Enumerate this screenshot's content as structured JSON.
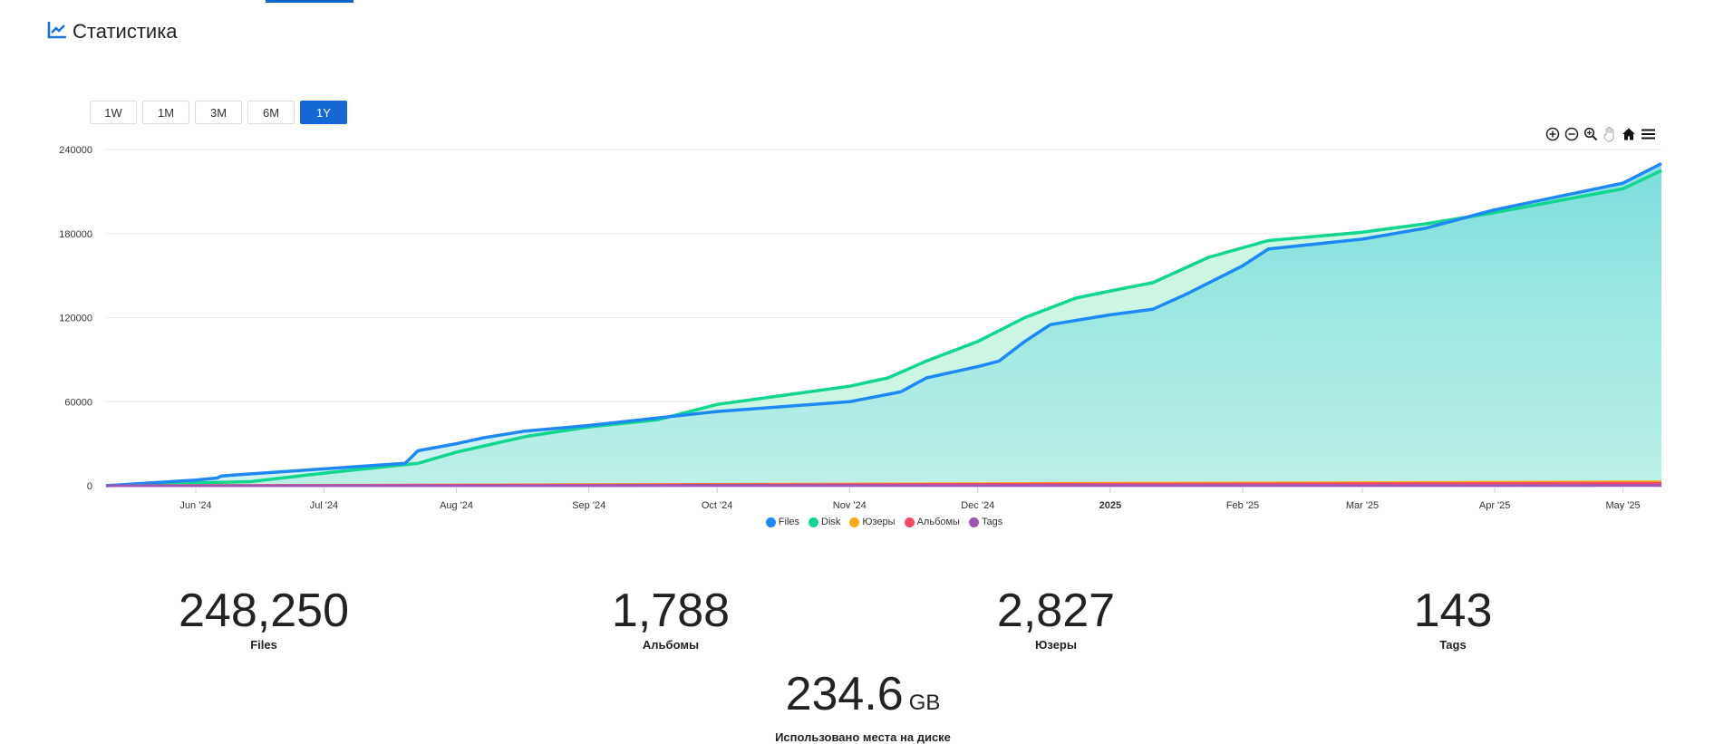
{
  "header": {
    "title": "Статистика",
    "icon": "chart-line-icon"
  },
  "ranges": [
    {
      "label": "1W",
      "active": false
    },
    {
      "label": "1M",
      "active": false
    },
    {
      "label": "3M",
      "active": false
    },
    {
      "label": "6M",
      "active": false
    },
    {
      "label": "1Y",
      "active": true
    }
  ],
  "toolbar": [
    "zoom-in-icon",
    "zoom-out-icon",
    "zoom-selection-icon",
    "pan-icon",
    "home-icon",
    "menu-icon"
  ],
  "chart_data": {
    "type": "area",
    "title": "",
    "xlabel": "",
    "ylabel": "",
    "xlim": [
      "2024-05-11",
      "2025-05-10"
    ],
    "ylim": [
      0,
      240000
    ],
    "yticks": [
      0,
      60000,
      120000,
      180000,
      240000
    ],
    "yticklabels": [
      "0",
      "60000",
      "120000",
      "180000",
      "240000"
    ],
    "xticks": [
      {
        "date": "2024-06-01",
        "label": "Jun '24",
        "bold": false
      },
      {
        "date": "2024-07-01",
        "label": "Jul '24",
        "bold": false
      },
      {
        "date": "2024-08-01",
        "label": "Aug '24",
        "bold": false
      },
      {
        "date": "2024-09-01",
        "label": "Sep '24",
        "bold": false
      },
      {
        "date": "2024-10-01",
        "label": "Oct '24",
        "bold": false
      },
      {
        "date": "2024-11-01",
        "label": "Nov '24",
        "bold": false
      },
      {
        "date": "2024-12-01",
        "label": "Dec '24",
        "bold": false
      },
      {
        "date": "2025-01-01",
        "label": "2025",
        "bold": true
      },
      {
        "date": "2025-02-01",
        "label": "Feb '25",
        "bold": false
      },
      {
        "date": "2025-03-01",
        "label": "Mar '25",
        "bold": false
      },
      {
        "date": "2025-04-01",
        "label": "Apr '25",
        "bold": false
      },
      {
        "date": "2025-05-01",
        "label": "May '25",
        "bold": false
      }
    ],
    "grid": true,
    "legend_position": "bottom-center",
    "series": [
      {
        "name": "Files",
        "color": "#1e88f5",
        "points": [
          [
            "2024-05-11",
            0
          ],
          [
            "2024-06-01",
            4000
          ],
          [
            "2024-06-06",
            5500
          ],
          [
            "2024-06-07",
            7000
          ],
          [
            "2024-07-01",
            12000
          ],
          [
            "2024-07-20",
            16000
          ],
          [
            "2024-07-23",
            25000
          ],
          [
            "2024-08-01",
            30000
          ],
          [
            "2024-08-07",
            34000
          ],
          [
            "2024-08-17",
            39000
          ],
          [
            "2024-09-01",
            43000
          ],
          [
            "2024-10-01",
            53000
          ],
          [
            "2024-11-01",
            60000
          ],
          [
            "2024-11-13",
            67000
          ],
          [
            "2024-11-19",
            77000
          ],
          [
            "2024-12-01",
            85000
          ],
          [
            "2024-12-06",
            89000
          ],
          [
            "2024-12-12",
            103000
          ],
          [
            "2024-12-18",
            115000
          ],
          [
            "2025-01-01",
            122000
          ],
          [
            "2025-01-11",
            126000
          ],
          [
            "2025-01-19",
            137000
          ],
          [
            "2025-02-01",
            157000
          ],
          [
            "2025-02-07",
            169000
          ],
          [
            "2025-03-01",
            176000
          ],
          [
            "2025-03-16",
            184000
          ],
          [
            "2025-04-01",
            197000
          ],
          [
            "2025-05-01",
            216000
          ],
          [
            "2025-05-10",
            230000
          ]
        ]
      },
      {
        "name": "Disk",
        "color": "#11d68e",
        "points": [
          [
            "2024-05-11",
            0
          ],
          [
            "2024-06-01",
            2000
          ],
          [
            "2024-06-14",
            3000
          ],
          [
            "2024-07-01",
            9000
          ],
          [
            "2024-07-23",
            16000
          ],
          [
            "2024-08-01",
            24000
          ],
          [
            "2024-08-17",
            35000
          ],
          [
            "2024-09-01",
            42000
          ],
          [
            "2024-09-17",
            47000
          ],
          [
            "2024-10-01",
            58000
          ],
          [
            "2024-11-01",
            71000
          ],
          [
            "2024-11-10",
            77000
          ],
          [
            "2024-11-19",
            89000
          ],
          [
            "2024-12-01",
            103000
          ],
          [
            "2024-12-12",
            120000
          ],
          [
            "2024-12-24",
            134000
          ],
          [
            "2025-01-01",
            139000
          ],
          [
            "2025-01-11",
            145000
          ],
          [
            "2025-01-24",
            163000
          ],
          [
            "2025-02-07",
            175000
          ],
          [
            "2025-03-01",
            181000
          ],
          [
            "2025-03-16",
            187000
          ],
          [
            "2025-04-01",
            195000
          ],
          [
            "2025-05-01",
            212000
          ],
          [
            "2025-05-10",
            225000
          ]
        ]
      },
      {
        "name": "Юзеры",
        "color": "#fbaa1a",
        "points": [
          [
            "2024-05-11",
            0
          ],
          [
            "2024-11-01",
            1200
          ],
          [
            "2025-05-10",
            2827
          ]
        ]
      },
      {
        "name": "Альбомы",
        "color": "#f34a66",
        "points": [
          [
            "2024-05-11",
            0
          ],
          [
            "2024-11-01",
            800
          ],
          [
            "2025-05-10",
            1788
          ]
        ]
      },
      {
        "name": "Tags",
        "color": "#9b59b6",
        "points": [
          [
            "2024-05-11",
            0
          ],
          [
            "2025-05-10",
            143
          ]
        ]
      }
    ]
  },
  "stats": [
    {
      "value": "248,250",
      "label": "Files"
    },
    {
      "value": "1,788",
      "label": "Альбомы"
    },
    {
      "value": "2,827",
      "label": "Юзеры"
    },
    {
      "value": "143",
      "label": "Tags"
    }
  ],
  "disk": {
    "value": "234.6",
    "unit": "GB",
    "label": "Использовано места на диске"
  }
}
